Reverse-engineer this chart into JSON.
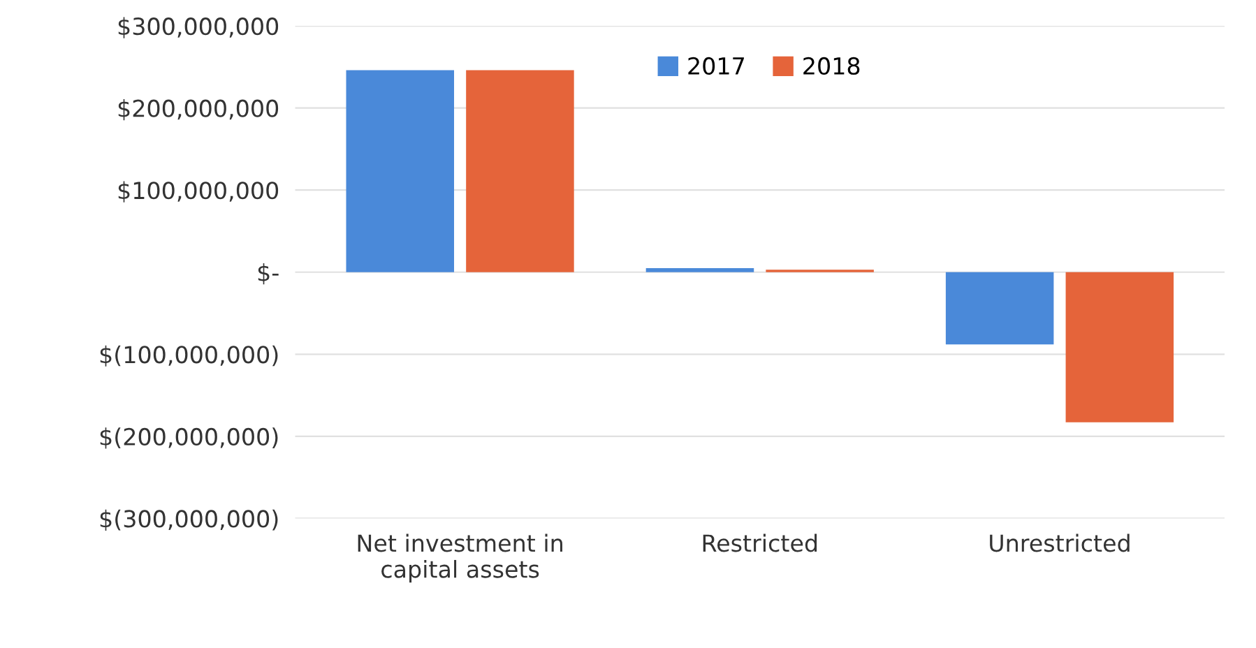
{
  "chart_data": {
    "type": "bar",
    "categories": [
      "Net investment in\ncapital assets",
      "Restricted",
      "Unrestricted"
    ],
    "series": [
      {
        "name": "2017",
        "color": "#4a89d9",
        "values": [
          246000000,
          5000000,
          -88000000
        ]
      },
      {
        "name": "2018",
        "color": "#e5643a",
        "values": [
          246000000,
          3000000,
          -183000000
        ]
      }
    ],
    "ylim": [
      -300000000,
      300000000
    ],
    "yticks": [
      {
        "value": 300000000,
        "label": "$300,000,000"
      },
      {
        "value": 200000000,
        "label": "$200,000,000"
      },
      {
        "value": 100000000,
        "label": "$100,000,000"
      },
      {
        "value": 0,
        "label": "$-"
      },
      {
        "value": -100000000,
        "label": "$(100,000,000)"
      },
      {
        "value": -200000000,
        "label": "$(200,000,000)"
      },
      {
        "value": -300000000,
        "label": "$(300,000,000)"
      }
    ],
    "grid": "y",
    "legend": "top"
  }
}
